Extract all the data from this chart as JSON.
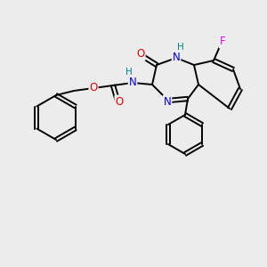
{
  "background_color": "#ececec",
  "bond_color": "#000000",
  "atom_colors": {
    "N": "#0000ee",
    "O": "#ee0000",
    "F": "#ee00ee",
    "H": "#008080",
    "C": "#000000"
  },
  "figsize": [
    3.0,
    3.0
  ],
  "dpi": 100
}
